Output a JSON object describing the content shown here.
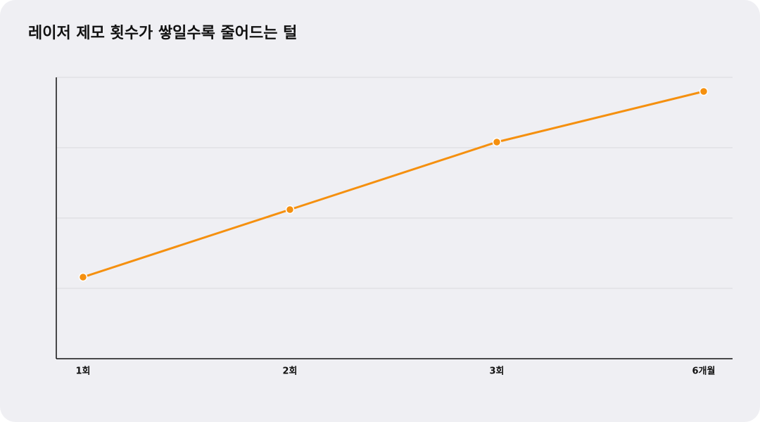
{
  "chart_data": {
    "type": "line",
    "title": "레이저 제모 횟수가 쌓일수록 줄어드는 털",
    "categories": [
      "1회",
      "2회",
      "3회",
      "6개월"
    ],
    "values": [
      1.16,
      2.12,
      3.08,
      3.8
    ],
    "color": "#f5900f",
    "ylim": [
      0,
      4
    ],
    "yticks": [
      0,
      1,
      2,
      3,
      4
    ],
    "grid": true
  }
}
